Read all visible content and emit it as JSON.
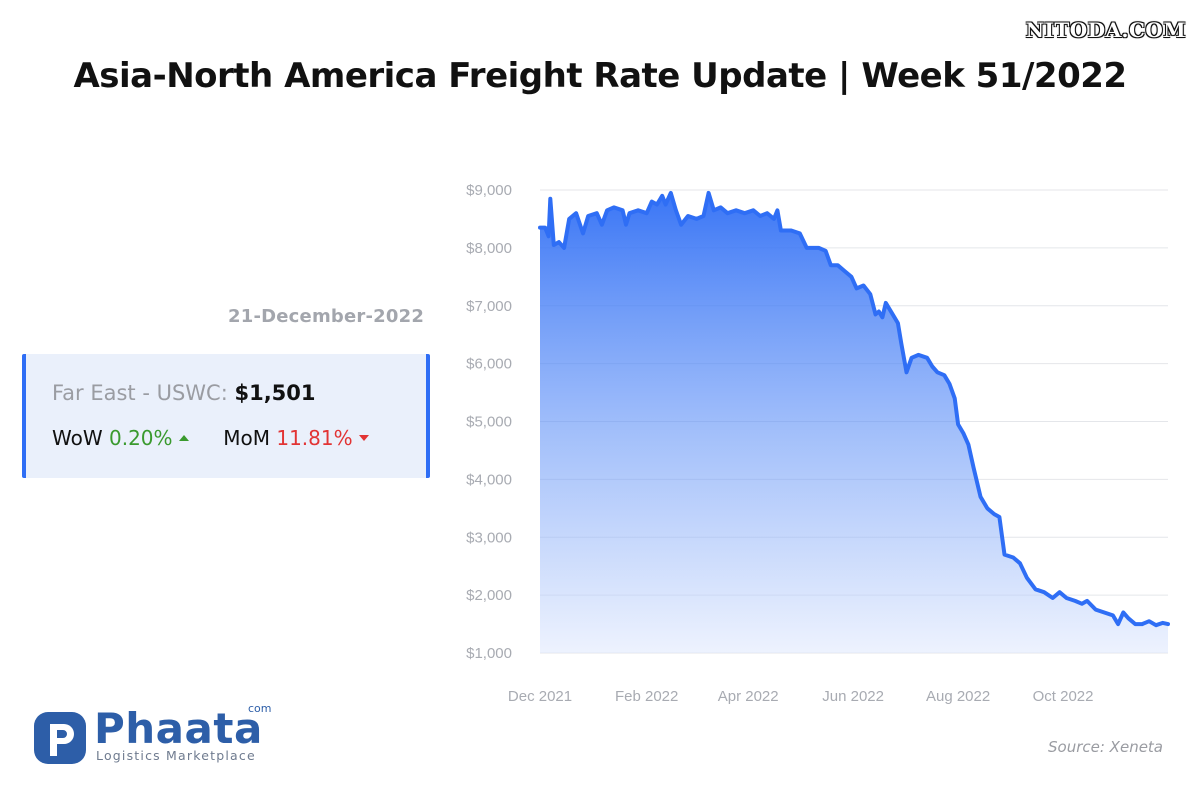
{
  "watermark": "NITODA.COM",
  "title": "Asia-North America Freight Rate Update | Week 51/2022",
  "date": "21-December-2022",
  "card": {
    "lane": "Far East - USWC:",
    "rate": "$1,501",
    "wow_label": "WoW",
    "wow_value": "0.20%",
    "mom_label": "MoM",
    "mom_value": "11.81%"
  },
  "logo": {
    "word": "Phaata",
    "com": "com",
    "tagline": "Logistics Marketplace"
  },
  "source": "Source: Xeneta",
  "colors": {
    "line": "#2f6ef5",
    "up": "#3a9a2e",
    "down": "#e23434",
    "card_bg": "#eaf0fb"
  },
  "chart_data": {
    "type": "area",
    "title": "",
    "xlabel": "",
    "ylabel": "",
    "ylim": [
      1000,
      9000
    ],
    "grid": true,
    "legend": "none",
    "y_ticks": [
      "$1,000",
      "$2,000",
      "$3,000",
      "$4,000",
      "$5,000",
      "$6,000",
      "$7,000",
      "$8,000",
      "$9,000"
    ],
    "x_ticks": [
      "Dec 2021",
      "Feb 2022",
      "Apr 2022",
      "Jun 2022",
      "Aug 2022",
      "Oct 2022"
    ],
    "series": [
      {
        "points": [
          [
            "2021-12-01",
            8350
          ],
          [
            "2021-12-04",
            8350
          ],
          [
            "2021-12-06",
            8200
          ],
          [
            "2021-12-07",
            8850
          ],
          [
            "2021-12-09",
            8050
          ],
          [
            "2021-12-12",
            8100
          ],
          [
            "2021-12-15",
            8000
          ],
          [
            "2021-12-18",
            8500
          ],
          [
            "2021-12-22",
            8600
          ],
          [
            "2021-12-26",
            8250
          ],
          [
            "2021-12-29",
            8550
          ],
          [
            "2022-01-03",
            8600
          ],
          [
            "2022-01-06",
            8400
          ],
          [
            "2022-01-09",
            8650
          ],
          [
            "2022-01-13",
            8700
          ],
          [
            "2022-01-18",
            8650
          ],
          [
            "2022-01-20",
            8400
          ],
          [
            "2022-01-22",
            8600
          ],
          [
            "2022-01-27",
            8650
          ],
          [
            "2022-02-01",
            8600
          ],
          [
            "2022-02-04",
            8800
          ],
          [
            "2022-02-07",
            8750
          ],
          [
            "2022-02-10",
            8900
          ],
          [
            "2022-02-12",
            8750
          ],
          [
            "2022-02-15",
            8950
          ],
          [
            "2022-02-18",
            8650
          ],
          [
            "2022-02-21",
            8400
          ],
          [
            "2022-02-25",
            8550
          ],
          [
            "2022-03-02",
            8500
          ],
          [
            "2022-03-06",
            8550
          ],
          [
            "2022-03-09",
            8950
          ],
          [
            "2022-03-12",
            8650
          ],
          [
            "2022-03-16",
            8700
          ],
          [
            "2022-03-20",
            8600
          ],
          [
            "2022-03-25",
            8650
          ],
          [
            "2022-03-30",
            8600
          ],
          [
            "2022-04-04",
            8650
          ],
          [
            "2022-04-08",
            8550
          ],
          [
            "2022-04-12",
            8600
          ],
          [
            "2022-04-16",
            8500
          ],
          [
            "2022-04-18",
            8650
          ],
          [
            "2022-04-20",
            8300
          ],
          [
            "2022-04-26",
            8300
          ],
          [
            "2022-05-01",
            8250
          ],
          [
            "2022-05-05",
            8000
          ],
          [
            "2022-05-12",
            8000
          ],
          [
            "2022-05-16",
            7950
          ],
          [
            "2022-05-19",
            7700
          ],
          [
            "2022-05-23",
            7700
          ],
          [
            "2022-05-27",
            7600
          ],
          [
            "2022-05-31",
            7500
          ],
          [
            "2022-06-03",
            7300
          ],
          [
            "2022-06-07",
            7350
          ],
          [
            "2022-06-11",
            7200
          ],
          [
            "2022-06-14",
            6850
          ],
          [
            "2022-06-16",
            6900
          ],
          [
            "2022-06-18",
            6800
          ],
          [
            "2022-06-20",
            7050
          ],
          [
            "2022-06-24",
            6850
          ],
          [
            "2022-06-27",
            6700
          ],
          [
            "2022-06-29",
            6350
          ],
          [
            "2022-07-02",
            5850
          ],
          [
            "2022-07-05",
            6100
          ],
          [
            "2022-07-09",
            6150
          ],
          [
            "2022-07-14",
            6100
          ],
          [
            "2022-07-17",
            5950
          ],
          [
            "2022-07-20",
            5850
          ],
          [
            "2022-07-24",
            5800
          ],
          [
            "2022-07-27",
            5650
          ],
          [
            "2022-07-30",
            5400
          ],
          [
            "2022-08-01",
            4950
          ],
          [
            "2022-08-04",
            4800
          ],
          [
            "2022-08-07",
            4600
          ],
          [
            "2022-08-10",
            4200
          ],
          [
            "2022-08-14",
            3700
          ],
          [
            "2022-08-18",
            3500
          ],
          [
            "2022-08-22",
            3400
          ],
          [
            "2022-08-25",
            3350
          ],
          [
            "2022-08-28",
            2700
          ],
          [
            "2022-09-02",
            2650
          ],
          [
            "2022-09-06",
            2550
          ],
          [
            "2022-09-10",
            2300
          ],
          [
            "2022-09-15",
            2100
          ],
          [
            "2022-09-20",
            2050
          ],
          [
            "2022-09-25",
            1950
          ],
          [
            "2022-09-29",
            2050
          ],
          [
            "2022-10-03",
            1950
          ],
          [
            "2022-10-08",
            1900
          ],
          [
            "2022-10-12",
            1850
          ],
          [
            "2022-10-15",
            1900
          ],
          [
            "2022-10-20",
            1750
          ],
          [
            "2022-10-25",
            1700
          ],
          [
            "2022-10-30",
            1650
          ],
          [
            "2022-11-02",
            1500
          ],
          [
            "2022-11-05",
            1700
          ],
          [
            "2022-11-08",
            1600
          ],
          [
            "2022-11-12",
            1500
          ],
          [
            "2022-11-16",
            1500
          ],
          [
            "2022-11-20",
            1550
          ],
          [
            "2022-11-24",
            1480
          ],
          [
            "2022-11-28",
            1520
          ],
          [
            "2022-12-01",
            1500
          ]
        ]
      }
    ]
  }
}
